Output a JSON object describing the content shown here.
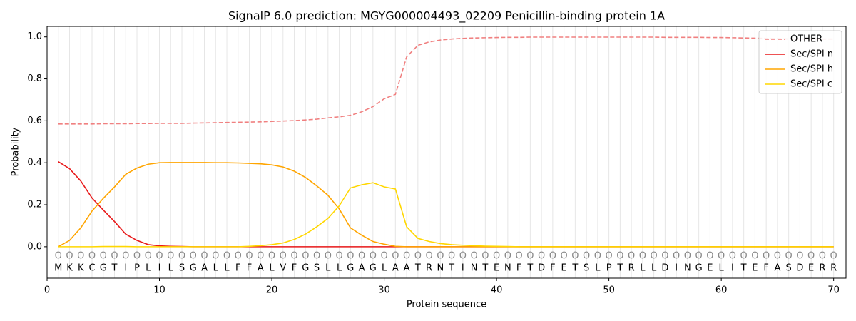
{
  "chart_data": {
    "type": "line",
    "title": "SignalP 6.0 prediction: MGYG000004493_02209 Penicillin-binding protein 1A",
    "x_label": "Protein sequence",
    "y_label": "Probability",
    "x": [
      1,
      2,
      3,
      4,
      5,
      6,
      7,
      8,
      9,
      10,
      11,
      12,
      13,
      14,
      15,
      16,
      17,
      18,
      19,
      20,
      21,
      22,
      23,
      24,
      25,
      26,
      27,
      28,
      29,
      30,
      31,
      32,
      33,
      34,
      35,
      36,
      37,
      38,
      39,
      40,
      41,
      42,
      43,
      44,
      45,
      46,
      47,
      48,
      49,
      50,
      51,
      52,
      53,
      54,
      55,
      56,
      57,
      58,
      59,
      60,
      61,
      62,
      63,
      64,
      65,
      66,
      67,
      68,
      69,
      70
    ],
    "sequence": [
      "M",
      "K",
      "K",
      "C",
      "G",
      "T",
      "I",
      "P",
      "L",
      "I",
      "L",
      "S",
      "G",
      "A",
      "L",
      "L",
      "F",
      "F",
      "A",
      "L",
      "V",
      "F",
      "G",
      "S",
      "L",
      "L",
      "G",
      "A",
      "G",
      "L",
      "A",
      "A",
      "T",
      "R",
      "N",
      "T",
      "I",
      "N",
      "T",
      "E",
      "N",
      "F",
      "T",
      "D",
      "F",
      "E",
      "T",
      "S",
      "L",
      "P",
      "T",
      "R",
      "L",
      "L",
      "D",
      "I",
      "N",
      "G",
      "E",
      "L",
      "I",
      "T",
      "E",
      "F",
      "A",
      "S",
      "D",
      "E",
      "R",
      "R"
    ],
    "labels": [
      "O",
      "O",
      "O",
      "O",
      "O",
      "O",
      "O",
      "O",
      "O",
      "O",
      "O",
      "O",
      "O",
      "O",
      "O",
      "O",
      "O",
      "O",
      "O",
      "O",
      "O",
      "O",
      "O",
      "O",
      "O",
      "O",
      "O",
      "O",
      "O",
      "O",
      "O",
      "O",
      "O",
      "O",
      "O",
      "O",
      "O",
      "O",
      "O",
      "O",
      "O",
      "O",
      "O",
      "O",
      "O",
      "O",
      "O",
      "O",
      "O",
      "O",
      "O",
      "O",
      "O",
      "O",
      "O",
      "O",
      "O",
      "O",
      "O",
      "O",
      "O",
      "O",
      "O",
      "O",
      "O",
      "O",
      "O",
      "O",
      "O",
      "O"
    ],
    "labels_y": -0.045,
    "series": [
      {
        "name": "OTHER",
        "color": "#f08080",
        "dashed": true,
        "values": [
          0.585,
          0.585,
          0.585,
          0.585,
          0.586,
          0.586,
          0.586,
          0.587,
          0.587,
          0.588,
          0.588,
          0.588,
          0.589,
          0.59,
          0.591,
          0.592,
          0.593,
          0.594,
          0.595,
          0.597,
          0.599,
          0.601,
          0.604,
          0.608,
          0.614,
          0.619,
          0.626,
          0.643,
          0.668,
          0.705,
          0.726,
          0.905,
          0.96,
          0.976,
          0.985,
          0.99,
          0.993,
          0.995,
          0.996,
          0.997,
          0.998,
          0.998,
          0.999,
          0.999,
          0.999,
          0.999,
          0.999,
          0.999,
          0.999,
          0.999,
          0.999,
          0.999,
          0.999,
          0.999,
          0.998,
          0.998,
          0.998,
          0.998,
          0.997,
          0.997,
          0.996,
          0.995,
          0.994,
          0.993,
          0.992,
          0.99,
          0.99,
          0.99,
          0.99,
          0.99
        ]
      },
      {
        "name": "Sec/SPI n",
        "color": "#e8191a",
        "values": [
          0.405,
          0.372,
          0.313,
          0.232,
          0.175,
          0.12,
          0.06,
          0.03,
          0.01,
          0.004,
          0.002,
          0.001,
          0,
          0,
          0,
          0,
          0,
          0,
          0,
          0,
          0,
          0,
          0,
          0,
          0,
          0,
          0,
          0,
          0,
          0,
          0,
          0,
          0,
          0,
          0,
          0,
          0,
          0,
          0,
          0,
          0,
          0,
          0,
          0,
          0,
          0,
          0,
          0,
          0,
          0,
          0,
          0,
          0,
          0,
          0,
          0,
          0,
          0,
          0,
          0,
          0,
          0,
          0,
          0,
          0,
          0,
          0,
          0,
          0,
          0
        ]
      },
      {
        "name": "Sec/SPI h",
        "color": "#ffa500",
        "values": [
          0,
          0.03,
          0.09,
          0.17,
          0.23,
          0.285,
          0.345,
          0.375,
          0.393,
          0.4,
          0.401,
          0.401,
          0.401,
          0.401,
          0.4,
          0.4,
          0.399,
          0.397,
          0.395,
          0.39,
          0.38,
          0.36,
          0.33,
          0.29,
          0.245,
          0.18,
          0.09,
          0.055,
          0.025,
          0.012,
          0.002,
          0,
          0,
          0,
          0,
          0,
          0,
          0,
          0,
          0,
          0,
          0,
          0,
          0,
          0,
          0,
          0,
          0,
          0,
          0,
          0,
          0,
          0,
          0,
          0,
          0,
          0,
          0,
          0,
          0,
          0,
          0,
          0,
          0,
          0,
          0,
          0,
          0,
          0,
          0
        ]
      },
      {
        "name": "Sec/SPI c",
        "color": "#ffd700",
        "values": [
          0,
          0,
          0,
          0,
          0.001,
          0.001,
          0.001,
          0,
          0,
          0,
          0,
          0,
          0,
          0,
          0,
          0,
          0,
          0.002,
          0.005,
          0.01,
          0.018,
          0.035,
          0.06,
          0.095,
          0.135,
          0.195,
          0.28,
          0.295,
          0.305,
          0.285,
          0.275,
          0.095,
          0.04,
          0.025,
          0.015,
          0.01,
          0.007,
          0.005,
          0.003,
          0.002,
          0.001,
          0,
          0,
          0,
          0,
          0,
          0,
          0,
          0,
          0,
          0,
          0,
          0,
          0,
          0,
          0,
          0,
          0,
          0,
          0,
          0,
          0,
          0,
          0,
          0,
          0,
          0,
          0,
          0,
          0
        ]
      }
    ],
    "xlim": [
      0,
      71.1
    ],
    "ylim": [
      -0.15,
      1.05
    ],
    "xticks": [
      0,
      10,
      20,
      30,
      40,
      50,
      60,
      70
    ],
    "yticks": [
      {
        "value": 0,
        "label": "0.0"
      },
      {
        "value": 0.2,
        "label": "0.2"
      },
      {
        "value": 0.4,
        "label": "0.4"
      },
      {
        "value": 0.6,
        "label": "0.6"
      },
      {
        "value": 0.8,
        "label": "0.8"
      },
      {
        "value": 1,
        "label": "1.0"
      }
    ],
    "grid": true,
    "legend": "upper right"
  }
}
